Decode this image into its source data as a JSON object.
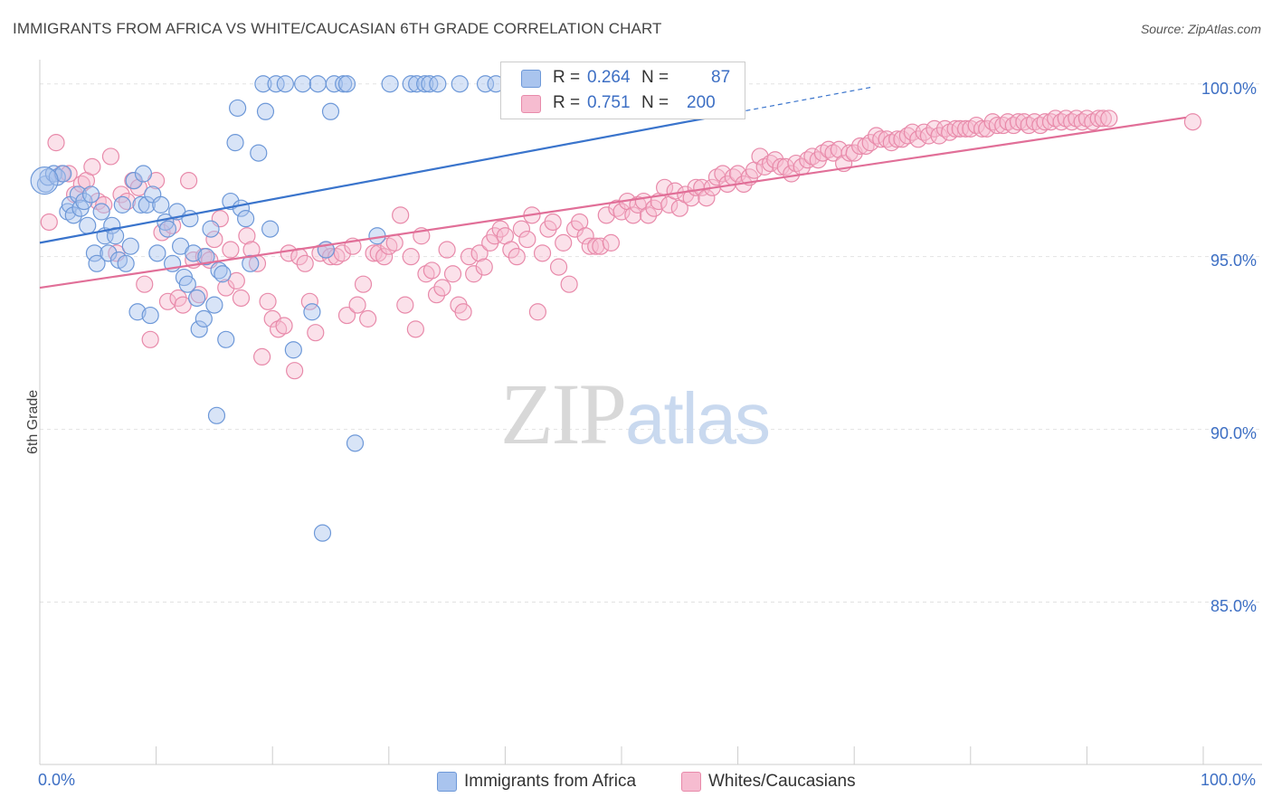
{
  "header": {
    "title": "IMMIGRANTS FROM AFRICA VS WHITE/CAUCASIAN 6TH GRADE CORRELATION CHART",
    "source": "Source: ZipAtlas.com"
  },
  "watermark": {
    "zip": "ZIP",
    "atlas": "atlas"
  },
  "legend": {
    "blue": {
      "r_label": "R =",
      "r_value": "0.264",
      "n_label": "N =",
      "n_value": "87"
    },
    "pink": {
      "r_label": "R =",
      "r_value": "0.751",
      "n_label": "N =",
      "n_value": "200"
    }
  },
  "colors": {
    "blue_fill": "#a9c4ee",
    "blue_stroke": "#6d98d8",
    "blue_line": "#3a74cc",
    "pink_fill": "#f6bcd0",
    "pink_stroke": "#e88aaa",
    "pink_line": "#e16f98",
    "grid": "#e2e2e2",
    "axis_text": "#3d6fc4"
  },
  "chart_data": {
    "type": "scatter",
    "title": "IMMIGRANTS FROM AFRICA VS WHITE/CAUCASIAN 6TH GRADE CORRELATION CHART",
    "xlabel": "",
    "ylabel": "6th Grade",
    "xlim": [
      0,
      100
    ],
    "ylim": [
      80.3,
      100.7
    ],
    "x_tick_labels": [
      "0.0%",
      "100.0%"
    ],
    "y_ticks": [
      85,
      90,
      95,
      100
    ],
    "y_tick_labels": [
      "85.0%",
      "90.0%",
      "95.0%",
      "100.0%"
    ],
    "grid": true,
    "legend_position": "top-center",
    "series": [
      {
        "name": "Immigrants from Africa",
        "color": "#a9c4ee",
        "trend": {
          "x0": 0,
          "y0": 95.4,
          "x1": 100,
          "y1": 101.7,
          "solid_until": 60
        },
        "points": [
          [
            0.5,
            97.1
          ],
          [
            0.7,
            97.3
          ],
          [
            1.2,
            97.4
          ],
          [
            1.5,
            97.3
          ],
          [
            2.0,
            97.4
          ],
          [
            2.4,
            96.3
          ],
          [
            2.6,
            96.5
          ],
          [
            2.9,
            96.2
          ],
          [
            3.3,
            96.8
          ],
          [
            3.5,
            96.4
          ],
          [
            3.8,
            96.6
          ],
          [
            4.1,
            95.9
          ],
          [
            4.4,
            96.8
          ],
          [
            4.7,
            95.1
          ],
          [
            4.9,
            94.8
          ],
          [
            5.3,
            96.3
          ],
          [
            5.6,
            95.6
          ],
          [
            5.9,
            95.1
          ],
          [
            6.2,
            95.9
          ],
          [
            6.5,
            95.6
          ],
          [
            6.8,
            94.9
          ],
          [
            7.1,
            96.5
          ],
          [
            7.4,
            94.8
          ],
          [
            7.8,
            95.3
          ],
          [
            8.1,
            97.2
          ],
          [
            8.4,
            93.4
          ],
          [
            8.7,
            96.5
          ],
          [
            8.9,
            97.4
          ],
          [
            9.2,
            96.5
          ],
          [
            9.5,
            93.3
          ],
          [
            9.7,
            96.8
          ],
          [
            10.1,
            95.1
          ],
          [
            10.4,
            96.5
          ],
          [
            10.8,
            96.0
          ],
          [
            11.0,
            95.8
          ],
          [
            11.4,
            94.8
          ],
          [
            11.8,
            96.3
          ],
          [
            12.1,
            95.3
          ],
          [
            12.4,
            94.4
          ],
          [
            12.7,
            94.2
          ],
          [
            12.9,
            96.1
          ],
          [
            13.2,
            95.1
          ],
          [
            13.5,
            93.8
          ],
          [
            13.7,
            92.9
          ],
          [
            14.1,
            93.2
          ],
          [
            14.3,
            95.0
          ],
          [
            14.7,
            95.8
          ],
          [
            15.0,
            93.6
          ],
          [
            15.2,
            90.4
          ],
          [
            15.4,
            94.6
          ],
          [
            15.7,
            94.5
          ],
          [
            16.0,
            92.6
          ],
          [
            16.4,
            96.6
          ],
          [
            16.8,
            98.3
          ],
          [
            17.0,
            99.3
          ],
          [
            17.3,
            96.4
          ],
          [
            17.7,
            96.1
          ],
          [
            18.1,
            94.8
          ],
          [
            18.8,
            98.0
          ],
          [
            19.2,
            100.0
          ],
          [
            19.4,
            99.2
          ],
          [
            19.8,
            95.8
          ],
          [
            20.3,
            100.0
          ],
          [
            21.1,
            100.0
          ],
          [
            21.8,
            92.3
          ],
          [
            22.6,
            100.0
          ],
          [
            23.4,
            93.4
          ],
          [
            23.9,
            100.0
          ],
          [
            24.3,
            87.0
          ],
          [
            24.6,
            95.2
          ],
          [
            25.0,
            99.2
          ],
          [
            25.3,
            100.0
          ],
          [
            26.1,
            100.0
          ],
          [
            26.4,
            100.0
          ],
          [
            27.1,
            89.6
          ],
          [
            29.0,
            95.6
          ],
          [
            30.1,
            100.0
          ],
          [
            31.9,
            100.0
          ],
          [
            32.4,
            100.0
          ],
          [
            33.1,
            100.0
          ],
          [
            33.5,
            100.0
          ],
          [
            34.2,
            100.0
          ],
          [
            36.1,
            100.0
          ],
          [
            38.3,
            100.0
          ],
          [
            39.2,
            100.0
          ],
          [
            41.0,
            100.0
          ],
          [
            54.5,
            100.0
          ]
        ]
      },
      {
        "name": "Whites/Caucasians",
        "color": "#f6bcd0",
        "trend": {
          "x0": 0,
          "y0": 94.1,
          "x1": 100,
          "y1": 99.1
        },
        "points": [
          [
            0.8,
            96.0
          ],
          [
            1.4,
            98.3
          ],
          [
            1.9,
            97.4
          ],
          [
            2.5,
            97.4
          ],
          [
            3.0,
            96.8
          ],
          [
            3.6,
            97.1
          ],
          [
            4.0,
            97.2
          ],
          [
            4.5,
            97.6
          ],
          [
            5.0,
            96.6
          ],
          [
            5.5,
            96.5
          ],
          [
            6.1,
            97.9
          ],
          [
            6.6,
            95.1
          ],
          [
            7.0,
            96.8
          ],
          [
            7.5,
            96.6
          ],
          [
            8.0,
            97.2
          ],
          [
            8.5,
            97.0
          ],
          [
            9.0,
            94.2
          ],
          [
            9.5,
            92.6
          ],
          [
            10.0,
            97.2
          ],
          [
            10.5,
            95.7
          ],
          [
            11.0,
            93.7
          ],
          [
            11.4,
            95.9
          ],
          [
            11.9,
            93.8
          ],
          [
            12.3,
            93.6
          ],
          [
            12.8,
            97.2
          ],
          [
            13.2,
            94.9
          ],
          [
            13.7,
            93.9
          ],
          [
            14.1,
            95.0
          ],
          [
            14.6,
            94.9
          ],
          [
            15.0,
            95.5
          ],
          [
            15.5,
            96.1
          ],
          [
            16.0,
            94.1
          ],
          [
            16.4,
            95.2
          ],
          [
            16.9,
            94.3
          ],
          [
            17.3,
            93.8
          ],
          [
            17.8,
            95.6
          ],
          [
            18.2,
            95.2
          ],
          [
            18.7,
            94.8
          ],
          [
            19.1,
            92.1
          ],
          [
            19.6,
            93.7
          ],
          [
            20.0,
            93.2
          ],
          [
            20.5,
            92.9
          ],
          [
            21.0,
            93.0
          ],
          [
            21.4,
            95.1
          ],
          [
            21.9,
            91.7
          ],
          [
            22.3,
            95.0
          ],
          [
            22.8,
            94.8
          ],
          [
            23.2,
            93.7
          ],
          [
            23.7,
            92.8
          ],
          [
            24.1,
            95.1
          ],
          [
            24.6,
            95.2
          ],
          [
            25.0,
            95.0
          ],
          [
            25.5,
            95.0
          ],
          [
            26.0,
            95.1
          ],
          [
            26.4,
            93.3
          ],
          [
            26.9,
            95.3
          ],
          [
            27.3,
            93.6
          ],
          [
            27.8,
            94.2
          ],
          [
            28.2,
            93.2
          ],
          [
            28.7,
            95.1
          ],
          [
            29.1,
            95.1
          ],
          [
            29.6,
            95.0
          ],
          [
            30.0,
            95.3
          ],
          [
            30.5,
            95.4
          ],
          [
            31.0,
            96.2
          ],
          [
            31.4,
            93.6
          ],
          [
            31.9,
            95.0
          ],
          [
            32.3,
            92.9
          ],
          [
            32.8,
            95.6
          ],
          [
            33.2,
            94.5
          ],
          [
            33.7,
            94.6
          ],
          [
            34.1,
            93.9
          ],
          [
            34.6,
            94.1
          ],
          [
            35.0,
            95.2
          ],
          [
            35.5,
            94.5
          ],
          [
            36.0,
            93.6
          ],
          [
            36.4,
            93.4
          ],
          [
            36.9,
            95.0
          ],
          [
            37.3,
            94.5
          ],
          [
            37.8,
            95.1
          ],
          [
            38.2,
            94.7
          ],
          [
            38.7,
            95.4
          ],
          [
            39.1,
            95.6
          ],
          [
            39.6,
            95.8
          ],
          [
            40.0,
            95.6
          ],
          [
            40.5,
            95.2
          ],
          [
            41.0,
            95.0
          ],
          [
            41.4,
            95.8
          ],
          [
            41.9,
            95.5
          ],
          [
            42.3,
            96.2
          ],
          [
            42.8,
            93.4
          ],
          [
            43.2,
            95.1
          ],
          [
            43.7,
            95.8
          ],
          [
            44.1,
            96.0
          ],
          [
            44.6,
            94.7
          ],
          [
            45.0,
            95.4
          ],
          [
            45.5,
            94.2
          ],
          [
            46.0,
            95.8
          ],
          [
            46.4,
            96.0
          ],
          [
            46.9,
            95.6
          ],
          [
            47.3,
            95.3
          ],
          [
            47.8,
            95.3
          ],
          [
            48.2,
            95.3
          ],
          [
            48.7,
            96.2
          ],
          [
            49.1,
            95.4
          ],
          [
            49.6,
            96.4
          ],
          [
            50.0,
            96.3
          ],
          [
            50.5,
            96.6
          ],
          [
            51.0,
            96.2
          ],
          [
            51.4,
            96.5
          ],
          [
            51.9,
            96.6
          ],
          [
            52.3,
            96.2
          ],
          [
            52.8,
            96.4
          ],
          [
            53.2,
            96.6
          ],
          [
            53.7,
            97.0
          ],
          [
            54.1,
            96.5
          ],
          [
            54.6,
            96.9
          ],
          [
            55.0,
            96.4
          ],
          [
            55.5,
            96.8
          ],
          [
            56.0,
            96.7
          ],
          [
            56.4,
            97.0
          ],
          [
            56.9,
            97.0
          ],
          [
            57.3,
            96.7
          ],
          [
            57.8,
            97.0
          ],
          [
            58.2,
            97.3
          ],
          [
            58.7,
            97.4
          ],
          [
            59.1,
            97.1
          ],
          [
            59.6,
            97.3
          ],
          [
            60.0,
            97.4
          ],
          [
            60.5,
            97.1
          ],
          [
            61.0,
            97.3
          ],
          [
            61.4,
            97.5
          ],
          [
            61.9,
            97.9
          ],
          [
            62.3,
            97.6
          ],
          [
            62.8,
            97.7
          ],
          [
            63.2,
            97.8
          ],
          [
            63.7,
            97.6
          ],
          [
            64.1,
            97.6
          ],
          [
            64.6,
            97.4
          ],
          [
            65.0,
            97.7
          ],
          [
            65.5,
            97.6
          ],
          [
            66.0,
            97.8
          ],
          [
            66.4,
            97.9
          ],
          [
            66.9,
            97.8
          ],
          [
            67.3,
            98.0
          ],
          [
            67.8,
            98.1
          ],
          [
            68.2,
            98.0
          ],
          [
            68.7,
            98.1
          ],
          [
            69.1,
            97.7
          ],
          [
            69.6,
            98.0
          ],
          [
            70.0,
            98.0
          ],
          [
            70.5,
            98.2
          ],
          [
            71.0,
            98.2
          ],
          [
            71.4,
            98.3
          ],
          [
            71.9,
            98.5
          ],
          [
            72.3,
            98.4
          ],
          [
            72.8,
            98.4
          ],
          [
            73.2,
            98.3
          ],
          [
            73.7,
            98.4
          ],
          [
            74.1,
            98.4
          ],
          [
            74.6,
            98.5
          ],
          [
            75.0,
            98.6
          ],
          [
            75.5,
            98.4
          ],
          [
            76.0,
            98.6
          ],
          [
            76.4,
            98.5
          ],
          [
            76.9,
            98.7
          ],
          [
            77.3,
            98.5
          ],
          [
            77.8,
            98.7
          ],
          [
            78.2,
            98.6
          ],
          [
            78.7,
            98.7
          ],
          [
            79.1,
            98.7
          ],
          [
            79.6,
            98.7
          ],
          [
            80.0,
            98.7
          ],
          [
            80.5,
            98.8
          ],
          [
            81.0,
            98.7
          ],
          [
            81.4,
            98.7
          ],
          [
            81.9,
            98.9
          ],
          [
            82.3,
            98.8
          ],
          [
            82.8,
            98.8
          ],
          [
            83.2,
            98.9
          ],
          [
            83.7,
            98.8
          ],
          [
            84.1,
            98.9
          ],
          [
            84.6,
            98.9
          ],
          [
            85.0,
            98.8
          ],
          [
            85.5,
            98.9
          ],
          [
            86.0,
            98.8
          ],
          [
            86.4,
            98.9
          ],
          [
            86.9,
            98.9
          ],
          [
            87.3,
            99.0
          ],
          [
            87.8,
            98.9
          ],
          [
            88.2,
            99.0
          ],
          [
            88.7,
            98.9
          ],
          [
            89.1,
            99.0
          ],
          [
            89.6,
            98.9
          ],
          [
            90.0,
            99.0
          ],
          [
            90.5,
            98.9
          ],
          [
            91.0,
            99.0
          ],
          [
            91.4,
            99.0
          ],
          [
            91.9,
            99.0
          ],
          [
            99.1,
            98.9
          ]
        ]
      }
    ]
  },
  "bottom_legend": {
    "blue_label": "Immigrants from Africa",
    "pink_label": "Whites/Caucasians"
  }
}
